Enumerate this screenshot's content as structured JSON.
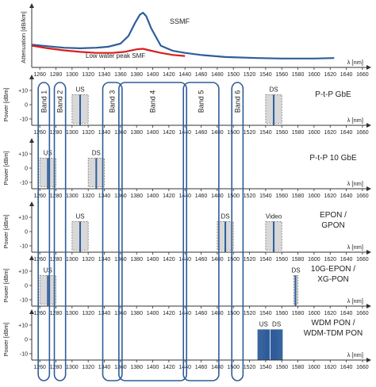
{
  "x_axis": {
    "unit_label": "λ [nm]",
    "ticks": [
      "1260",
      "1280",
      "1300",
      "1320",
      "1340",
      "1360",
      "1380",
      "1400",
      "1420",
      "1440",
      "1460",
      "1480",
      "1500",
      "1520",
      "1540",
      "1560",
      "1580",
      "1600",
      "1620",
      "1640",
      "1660"
    ]
  },
  "attenuation_panel": {
    "ylabel": "Attenuation [dB/km]",
    "ssmf_label": "SSMF",
    "lowwater_label": "Low water peak SMF",
    "colors": {
      "ssmf": "#2e5d9a",
      "lowwater": "#d62020"
    },
    "chart_data": {
      "type": "line",
      "xlabel": "λ [nm]",
      "ylabel": "Attenuation [dB/km]",
      "xlim": [
        1250,
        1660
      ],
      "series": [
        {
          "name": "SSMF",
          "x": [
            1250,
            1270,
            1290,
            1310,
            1330,
            1345,
            1360,
            1370,
            1378,
            1384,
            1388,
            1392,
            1398,
            1410,
            1425,
            1440,
            1460,
            1490,
            1530,
            1560,
            1600,
            1625
          ],
          "y": [
            0.38,
            0.35,
            0.32,
            0.31,
            0.32,
            0.34,
            0.4,
            0.55,
            0.8,
            0.96,
            1.0,
            0.93,
            0.7,
            0.36,
            0.26,
            0.22,
            0.18,
            0.14,
            0.12,
            0.11,
            0.11,
            0.12
          ]
        },
        {
          "name": "Low water peak SMF",
          "x": [
            1250,
            1270,
            1290,
            1310,
            1330,
            1350,
            1365,
            1380,
            1388,
            1396,
            1410,
            1425,
            1440
          ],
          "y": [
            0.36,
            0.31,
            0.27,
            0.24,
            0.22,
            0.22,
            0.24,
            0.29,
            0.3,
            0.27,
            0.22,
            0.18,
            0.16
          ]
        }
      ]
    }
  },
  "bands": {
    "labels": [
      "Band 1",
      "Band 2",
      "Band 3",
      "Band 4",
      "Band 5",
      "Band 6"
    ],
    "ranges_nm": [
      [
        1260,
        1270
      ],
      [
        1280,
        1290
      ],
      [
        1340,
        1360
      ],
      [
        1360,
        1440
      ],
      [
        1440,
        1480
      ],
      [
        1500,
        1510
      ]
    ]
  },
  "panels": [
    {
      "title_lines": [
        "P-t-P GbE"
      ],
      "ylabel": "Power [dBm]",
      "yticks": [
        "+10",
        "0",
        "-10"
      ],
      "signals": [
        {
          "label": "US",
          "range_nm": [
            1300,
            1320
          ],
          "lines_nm": [
            1310
          ]
        },
        {
          "label": "DS",
          "range_nm": [
            1540,
            1560
          ],
          "lines_nm": [
            1550
          ]
        }
      ]
    },
    {
      "title_lines": [
        "P-t-P 10 GbE"
      ],
      "ylabel": "Power [dBm]",
      "yticks": [
        "+10",
        "0",
        "-10"
      ],
      "signals": [
        {
          "label": "US",
          "range_nm": [
            1260,
            1280
          ],
          "lines_nm": [
            1270
          ]
        },
        {
          "label": "DS",
          "range_nm": [
            1320,
            1340
          ],
          "lines_nm": [
            1330
          ]
        }
      ]
    },
    {
      "title_lines": [
        "EPON /",
        "GPON"
      ],
      "ylabel": "Power [dBm]",
      "yticks": [
        "+10",
        "0",
        "-10"
      ],
      "signals": [
        {
          "label": "US",
          "range_nm": [
            1300,
            1320
          ],
          "lines_nm": [
            1310
          ]
        },
        {
          "label": "DS",
          "range_nm": [
            1480,
            1500
          ],
          "lines_nm": [
            1490
          ]
        },
        {
          "label": "Video",
          "range_nm": [
            1540,
            1560
          ],
          "lines_nm": [
            1550
          ]
        }
      ]
    },
    {
      "title_lines": [
        "10G-EPON /",
        "XG-PON"
      ],
      "ylabel": "Power [dBm]",
      "yticks": [
        "+10",
        "0",
        "-10"
      ],
      "signals": [
        {
          "label": "US",
          "range_nm": [
            1260,
            1280
          ],
          "lines_nm": [
            1270
          ]
        },
        {
          "label": "DS",
          "range_nm": [
            1575,
            1580
          ],
          "lines_nm": [
            1577
          ]
        }
      ]
    },
    {
      "title_lines": [
        "WDM PON /",
        "WDM-TDM PON"
      ],
      "ylabel": "Power [dBm]",
      "yticks": [
        "+10",
        "0",
        "-10"
      ],
      "signals": [
        {
          "label": "US",
          "range_nm": [
            1530,
            1545
          ],
          "lines_nm": [
            1530.5,
            1531.5,
            1532.5,
            1533.5,
            1534.5,
            1535.5,
            1536.5,
            1537.5,
            1538.5,
            1539.5,
            1540.5,
            1541.5,
            1542.5,
            1543.5,
            1544.5
          ]
        },
        {
          "label": "DS",
          "range_nm": [
            1546,
            1561
          ],
          "lines_nm": [
            1546.5,
            1547.5,
            1548.5,
            1549.5,
            1550.5,
            1551.5,
            1552.5,
            1553.5,
            1554.5,
            1555.5,
            1556.5,
            1557.5,
            1558.5,
            1559.5,
            1560.5
          ]
        }
      ]
    }
  ]
}
